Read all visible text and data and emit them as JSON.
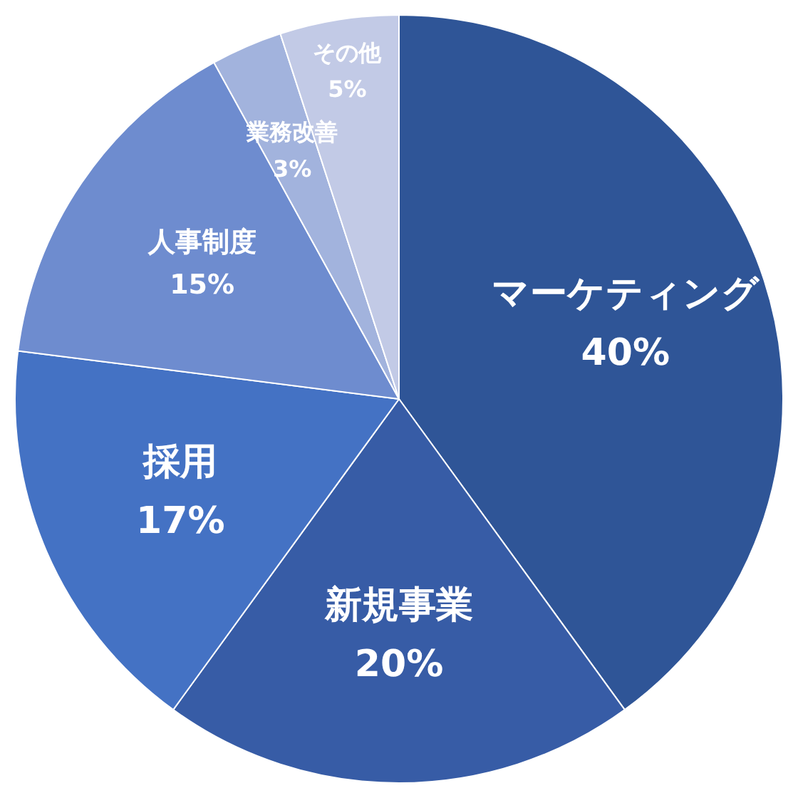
{
  "chart_data": {
    "type": "pie",
    "categories": [
      "マーケティング",
      "新規事業",
      "採用",
      "人事制度",
      "業務改善",
      "その他"
    ],
    "values": [
      40,
      20,
      17,
      15,
      3,
      5
    ],
    "value_labels": [
      "40%",
      "20%",
      "17%",
      "15%",
      "3%",
      "5%"
    ],
    "colors": [
      "#2f5597",
      "#375ca6",
      "#4472c4",
      "#6e8ccf",
      "#a2b3dd",
      "#c2cae6"
    ],
    "legend": false
  }
}
